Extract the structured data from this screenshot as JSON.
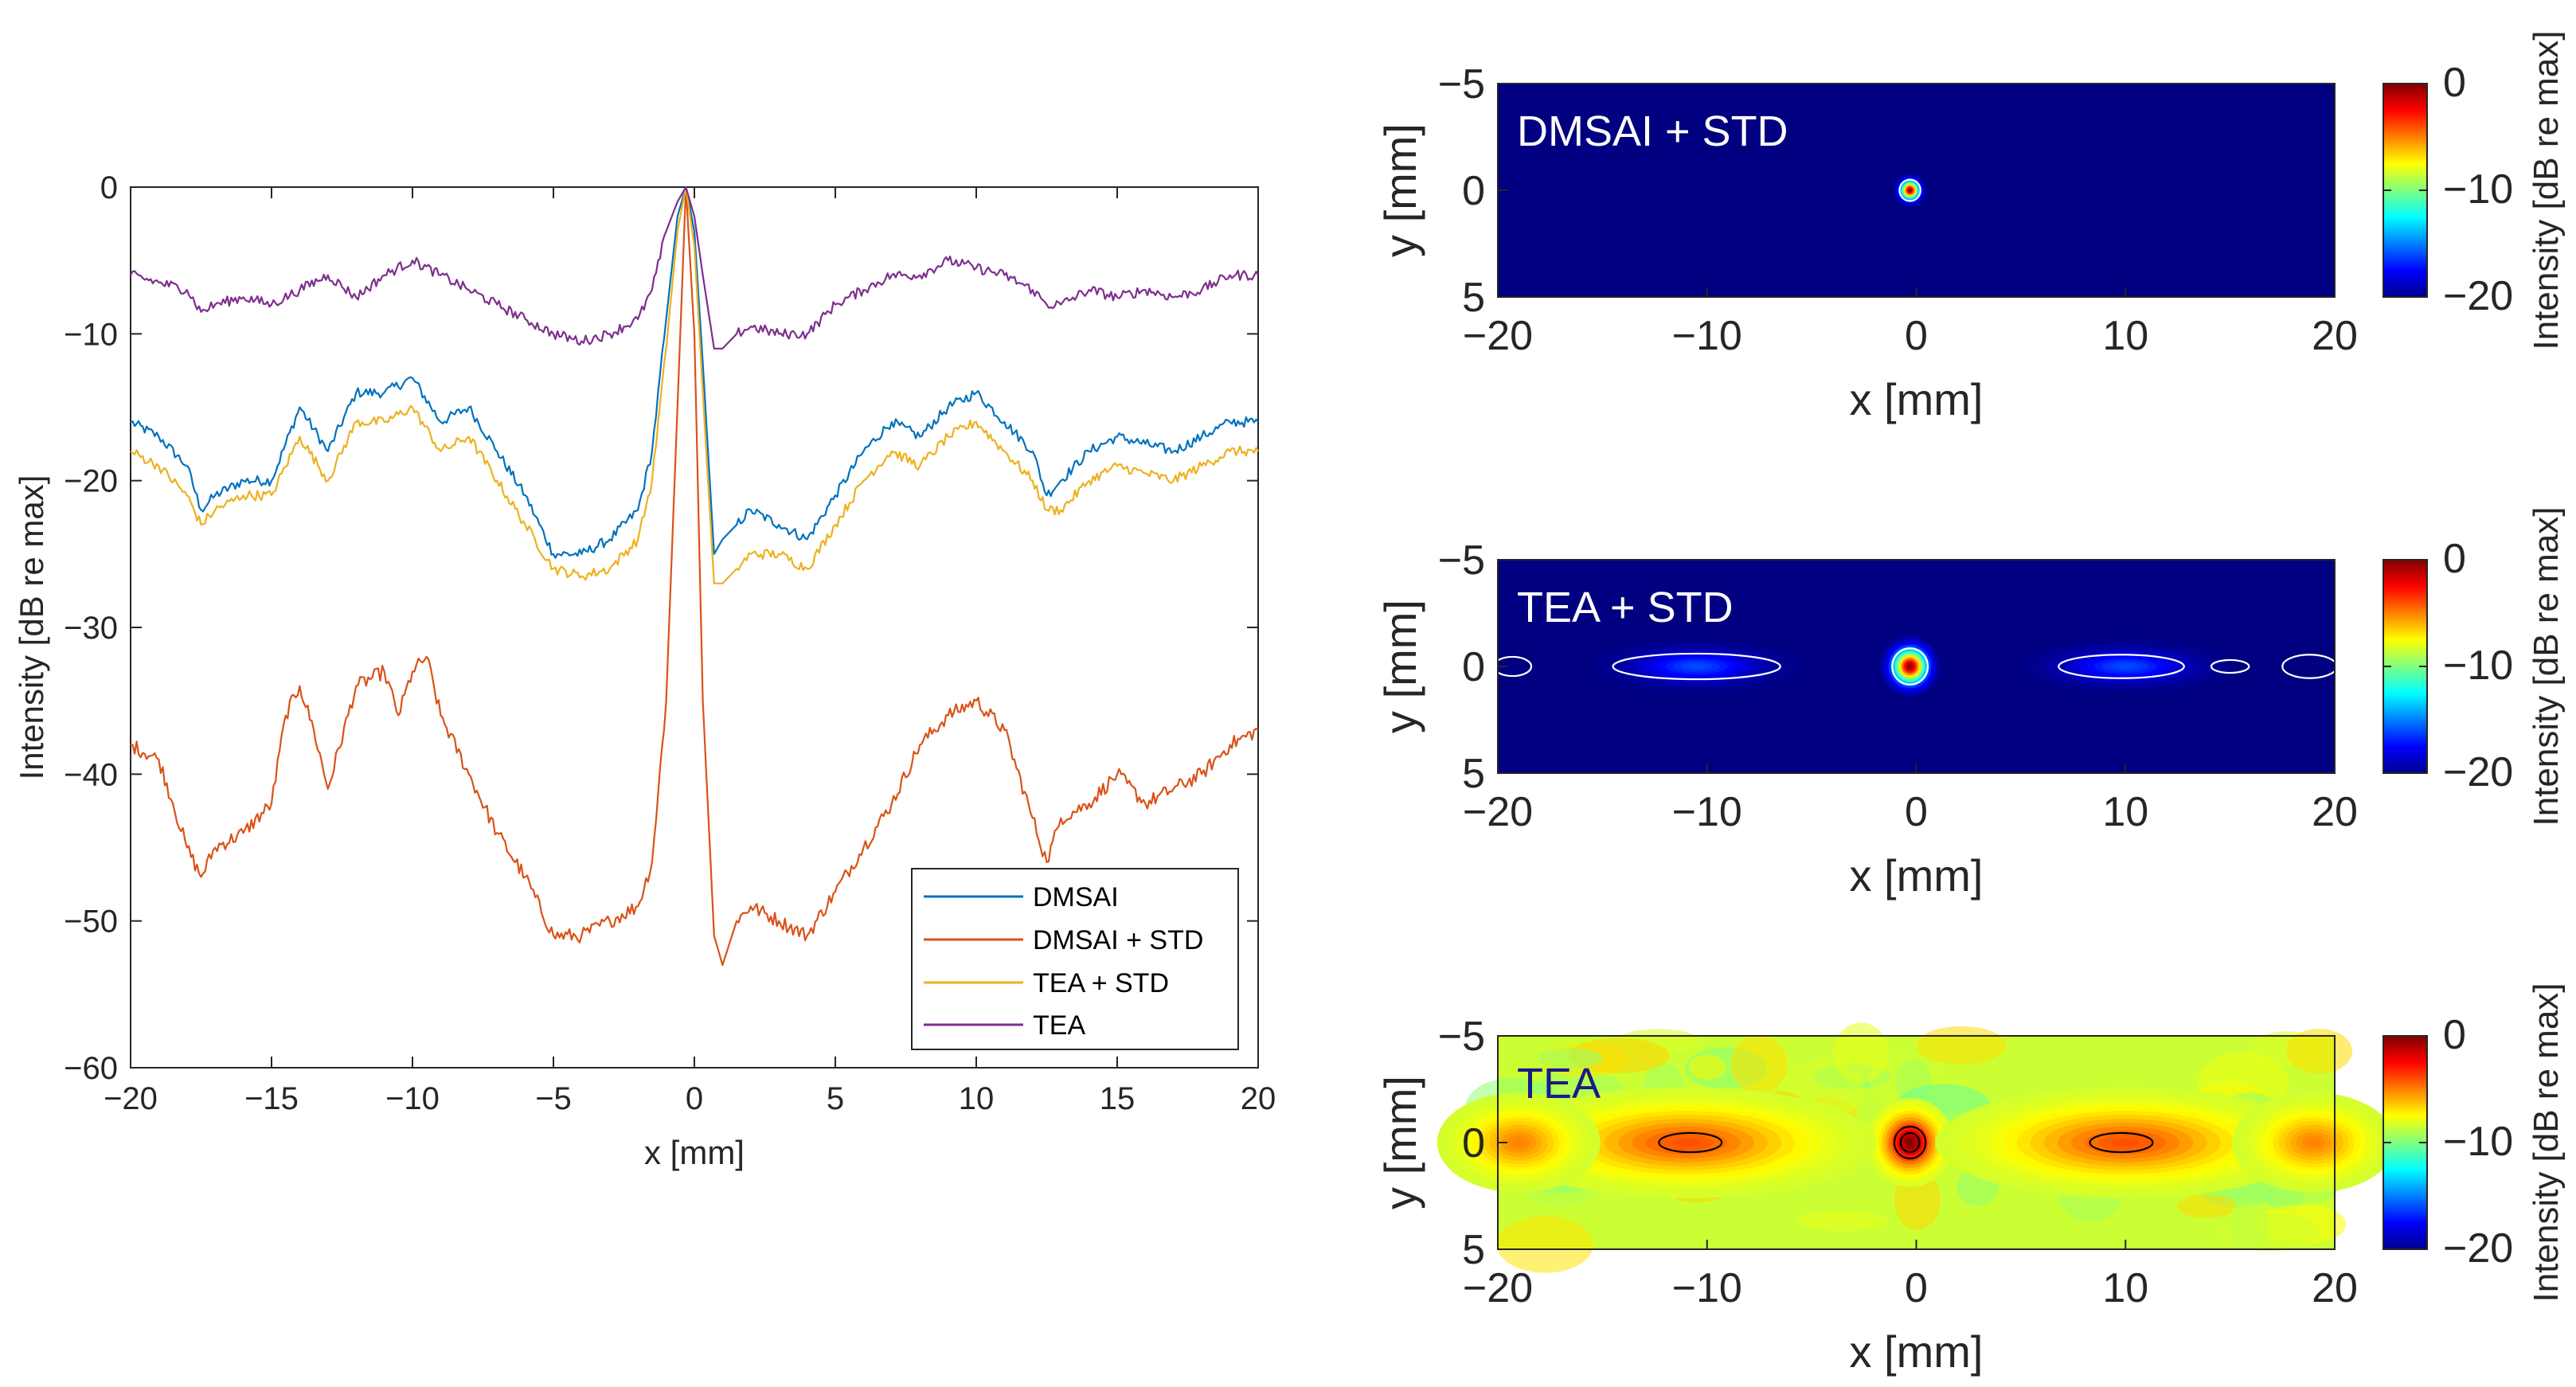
{
  "chart_data": [
    {
      "type": "line",
      "xlabel": "x [mm]",
      "ylabel": "Intensity [dB re max]",
      "xlim": [
        -20,
        20
      ],
      "ylim": [
        -60,
        0
      ],
      "xticks": [
        -20,
        -15,
        -10,
        -5,
        0,
        5,
        10,
        15,
        20
      ],
      "yticks": [
        -60,
        -50,
        -40,
        -30,
        -20,
        -10,
        0
      ],
      "xtick_labels": [
        "−20",
        "−15",
        "−10",
        "−5",
        "0",
        "5",
        "10",
        "15",
        "20"
      ],
      "ytick_labels": [
        "−60",
        "−50",
        "−40",
        "−30",
        "−20",
        "−10",
        "0"
      ],
      "legend_position": "bottom-right",
      "series": [
        {
          "name": "DMSAI",
          "color": "#0072BD",
          "x": [
            -20,
            -19,
            -18,
            -17.5,
            -17,
            -16,
            -15,
            -14,
            -13,
            -12,
            -11,
            -10,
            -9,
            -8,
            -7,
            -6,
            -5,
            -4,
            -3,
            -2,
            -1.5,
            -1,
            -0.6,
            -0.3,
            0,
            0.3,
            0.7,
            1,
            1.5,
            2,
            3,
            4,
            5,
            6,
            7,
            8,
            9,
            10,
            11,
            12,
            12.5,
            13,
            14,
            15,
            16,
            17,
            18,
            19,
            20
          ],
          "values": [
            -16,
            -17,
            -19,
            -22,
            -21,
            -20,
            -20,
            -15,
            -18,
            -14,
            -14,
            -13,
            -16,
            -15,
            -18,
            -21,
            -25,
            -25,
            -24,
            -22,
            -18,
            -9,
            -2,
            0,
            -3,
            -12,
            -25,
            -24,
            -23,
            -22,
            -23,
            -24,
            -21,
            -18,
            -16,
            -17,
            -15,
            -14,
            -16,
            -18,
            -21,
            -20,
            -18,
            -17,
            -17.5,
            -18,
            -17,
            -16,
            -16
          ]
        },
        {
          "name": "DMSAI + STD",
          "color": "#D95319",
          "x": [
            -20,
            -19,
            -18.5,
            -18,
            -17.5,
            -17,
            -16,
            -15,
            -14.5,
            -14,
            -13.5,
            -13,
            -12,
            -11,
            -10.5,
            -10,
            -9.5,
            -9,
            -8,
            -7,
            -6,
            -5,
            -4,
            -3,
            -2,
            -1.5,
            -1,
            -0.6,
            -0.3,
            0,
            0.3,
            0.7,
            1,
            1.5,
            2,
            3,
            4,
            5,
            6,
            7,
            8,
            9,
            10,
            11,
            12,
            12.5,
            13,
            14,
            15,
            16,
            17,
            18,
            19,
            20
          ],
          "values": [
            -38,
            -39,
            -42,
            -45,
            -47,
            -45,
            -44,
            -42,
            -36,
            -34,
            -37,
            -41,
            -34,
            -33,
            -36,
            -33,
            -32,
            -36,
            -40,
            -44,
            -47,
            -51,
            -51,
            -50,
            -49,
            -46,
            -35,
            -15,
            0,
            -10,
            -35,
            -51,
            -53,
            -50,
            -49,
            -50,
            -51,
            -48,
            -45,
            -42,
            -38,
            -36,
            -35,
            -37,
            -43,
            -46,
            -43,
            -42,
            -40,
            -42,
            -41,
            -40,
            -38,
            -37
          ]
        },
        {
          "name": "TEA + STD",
          "color": "#EDB120",
          "x": [
            -20,
            -19,
            -18,
            -17.5,
            -17,
            -16,
            -15,
            -14,
            -13,
            -12,
            -11,
            -10,
            -9,
            -8,
            -7,
            -6,
            -5,
            -4,
            -3,
            -2,
            -1.5,
            -1,
            -0.6,
            -0.3,
            0,
            0.3,
            0.7,
            1,
            1.5,
            2,
            3,
            4,
            5,
            6,
            7,
            8,
            9,
            10,
            11,
            12,
            12.5,
            13,
            14,
            15,
            16,
            17,
            18,
            19,
            20
          ],
          "values": [
            -18,
            -19,
            -21,
            -23,
            -22,
            -21,
            -21,
            -17,
            -20,
            -16,
            -16,
            -15,
            -18,
            -17,
            -20,
            -23,
            -26,
            -26.5,
            -26,
            -24,
            -20,
            -11,
            -3,
            0,
            -4,
            -14,
            -27,
            -27,
            -26,
            -25,
            -25,
            -26,
            -23,
            -20,
            -18,
            -19,
            -17,
            -16,
            -18,
            -20,
            -22,
            -22,
            -20,
            -19,
            -19.5,
            -20,
            -19,
            -18,
            -18
          ]
        },
        {
          "name": "TEA",
          "color": "#7E2F8E",
          "x": [
            -20,
            -19,
            -18,
            -17.5,
            -17,
            -16,
            -15,
            -14,
            -13,
            -12,
            -11,
            -10,
            -9,
            -8,
            -7,
            -6,
            -5,
            -4,
            -3,
            -2,
            -1.5,
            -1,
            -0.6,
            -0.3,
            0,
            0.3,
            0.7,
            1,
            1.5,
            2,
            3,
            4,
            5,
            6,
            7,
            8,
            9,
            10,
            11,
            12,
            12.5,
            13,
            14,
            15,
            16,
            17,
            18,
            19,
            20
          ],
          "values": [
            -6,
            -6.5,
            -7,
            -8.5,
            -8,
            -7.5,
            -8,
            -7,
            -6,
            -7.5,
            -6,
            -5,
            -6,
            -7,
            -8,
            -9,
            -10,
            -10.5,
            -10,
            -9,
            -7,
            -3,
            -1,
            0,
            -2,
            -6,
            -11,
            -11,
            -10,
            -9.5,
            -10,
            -10,
            -8,
            -7,
            -6,
            -6,
            -5,
            -5.5,
            -6,
            -7,
            -8,
            -8,
            -7,
            -7.5,
            -7,
            -7.5,
            -7,
            -6,
            -6
          ]
        }
      ]
    },
    {
      "type": "heatmap",
      "title": "DMSAI + STD",
      "title_color": "#ffffff",
      "xlabel": "x [mm]",
      "ylabel": "y [mm]",
      "xlim": [
        -20,
        20
      ],
      "ylim": [
        5,
        -5
      ],
      "xticks": [
        -20,
        -10,
        0,
        10,
        20
      ],
      "yticks": [
        -5,
        0,
        5
      ],
      "xtick_labels": [
        "−20",
        "−10",
        "0",
        "10",
        "20"
      ],
      "ytick_labels": [
        "−5",
        "0",
        "5"
      ],
      "colorbar_label": "Intensity [dB re max]",
      "colorbar_range": [
        -20,
        0
      ],
      "colorbar_ticks": [
        "0",
        "−10",
        "−20"
      ],
      "background_db": -20,
      "blobs": [
        {
          "x": -0.3,
          "y": 0,
          "sx": 0.3,
          "sy": 0.3,
          "peak_db": 0
        }
      ],
      "contours": [
        {
          "x": -0.3,
          "y": 0,
          "rx": 0.5,
          "ry": 0.5,
          "color": "#ffffff"
        }
      ]
    },
    {
      "type": "heatmap",
      "title": "TEA + STD",
      "title_color": "#ffffff",
      "xlabel": "x [mm]",
      "ylabel": "y [mm]",
      "xlim": [
        -20,
        20
      ],
      "ylim": [
        5,
        -5
      ],
      "xticks": [
        -20,
        -10,
        0,
        10,
        20
      ],
      "yticks": [
        -5,
        0,
        5
      ],
      "xtick_labels": [
        "−20",
        "−10",
        "0",
        "10",
        "20"
      ],
      "ytick_labels": [
        "−5",
        "0",
        "5"
      ],
      "colorbar_label": "Intensity [dB re max]",
      "colorbar_range": [
        -20,
        0
      ],
      "colorbar_ticks": [
        "0",
        "−10",
        "−20"
      ],
      "background_db": -20,
      "blobs": [
        {
          "x": -0.3,
          "y": 0,
          "sx": 0.55,
          "sy": 0.55,
          "peak_db": 0
        },
        {
          "x": -10.5,
          "y": 0,
          "sx": 2.0,
          "sy": 0.5,
          "peak_db": -16
        },
        {
          "x": 10,
          "y": 0,
          "sx": 2.0,
          "sy": 0.5,
          "peak_db": -16
        }
      ],
      "contours": [
        {
          "x": -0.3,
          "y": 0,
          "rx": 0.85,
          "ry": 0.85,
          "color": "#ffffff"
        },
        {
          "x": -19.3,
          "y": 0,
          "rx": 0.9,
          "ry": 0.45,
          "color": "#ffffff"
        },
        {
          "x": -10.5,
          "y": 0,
          "rx": 4.0,
          "ry": 0.6,
          "color": "#ffffff"
        },
        {
          "x": 9.8,
          "y": 0,
          "rx": 3.0,
          "ry": 0.55,
          "color": "#ffffff"
        },
        {
          "x": 15,
          "y": 0,
          "rx": 0.9,
          "ry": 0.3,
          "color": "#ffffff"
        },
        {
          "x": 18.8,
          "y": 0,
          "rx": 1.3,
          "ry": 0.55,
          "color": "#ffffff"
        }
      ]
    },
    {
      "type": "heatmap",
      "title": "TEA",
      "title_color": "#1a1a8c",
      "xlabel": "x [mm]",
      "ylabel": "y [mm]",
      "xlim": [
        -20,
        20
      ],
      "ylim": [
        5,
        -5
      ],
      "xticks": [
        -20,
        -10,
        0,
        10,
        20
      ],
      "yticks": [
        -5,
        0,
        5
      ],
      "xtick_labels": [
        "−20",
        "−10",
        "0",
        "10",
        "20"
      ],
      "ytick_labels": [
        "−5",
        "0",
        "5"
      ],
      "colorbar_label": "Intensity [dB re max]",
      "colorbar_range": [
        -20,
        0
      ],
      "colorbar_ticks": [
        "0",
        "−10",
        "−20"
      ],
      "background_db": -8.5,
      "blobs": [
        {
          "x": -0.3,
          "y": 0,
          "sx": 0.8,
          "sy": 0.8,
          "peak_db": 0
        },
        {
          "x": -11,
          "y": 0,
          "sx": 3.5,
          "sy": 1.0,
          "peak_db": -4
        },
        {
          "x": 10,
          "y": 0,
          "sx": 3.5,
          "sy": 1.0,
          "peak_db": -4
        },
        {
          "x": -19,
          "y": 0,
          "sx": 1.5,
          "sy": 0.9,
          "peak_db": -5
        },
        {
          "x": 19,
          "y": 0,
          "sx": 1.5,
          "sy": 0.9,
          "peak_db": -5
        }
      ],
      "contours": [
        {
          "x": -0.3,
          "y": 0,
          "rx": 0.75,
          "ry": 0.75,
          "color": "#000000"
        },
        {
          "x": -0.3,
          "y": 0,
          "rx": 0.45,
          "ry": 0.45,
          "color": "#000000"
        },
        {
          "x": -10.8,
          "y": 0,
          "rx": 1.5,
          "ry": 0.45,
          "color": "#000000"
        },
        {
          "x": 9.8,
          "y": 0,
          "rx": 1.5,
          "ry": 0.45,
          "color": "#000000"
        }
      ]
    }
  ]
}
